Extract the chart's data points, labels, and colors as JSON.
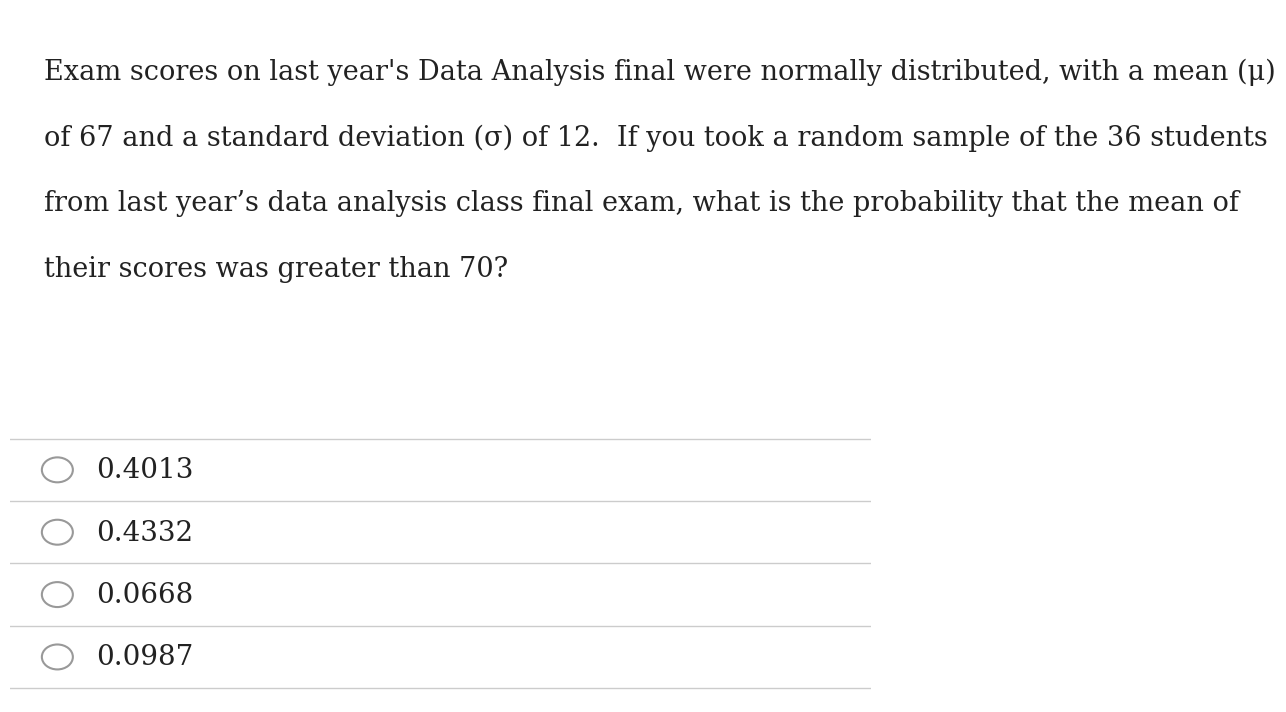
{
  "background_color": "#ffffff",
  "text_color": "#222222",
  "line_color": "#cccccc",
  "question_text": "Exam scores on last year's Data Analysis final were normally distributed, with a mean (μ)\nof 67 and a standard deviation (σ) of 12.  If you took a random sample of the 36 students\nfrom last year’s data analysis class final exam, what is the probability that the mean of\ntheir scores was greater than 70?",
  "choices": [
    "0.4013",
    "0.4332",
    "0.0668",
    "0.0987"
  ],
  "question_fontsize": 19.5,
  "choice_fontsize": 20,
  "fig_width": 12.0,
  "fig_height": 6.93
}
